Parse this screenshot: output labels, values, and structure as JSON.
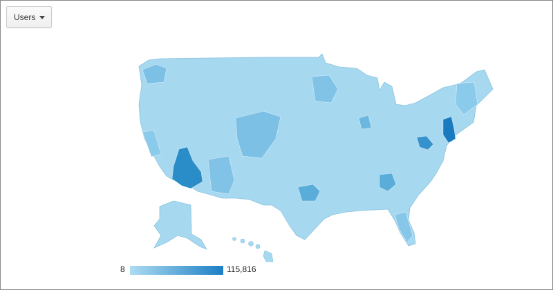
{
  "dropdown": {
    "label": "Users"
  },
  "legend": {
    "min": 8,
    "max": {
      "value": 115816,
      "label": "115,816"
    }
  }
}
